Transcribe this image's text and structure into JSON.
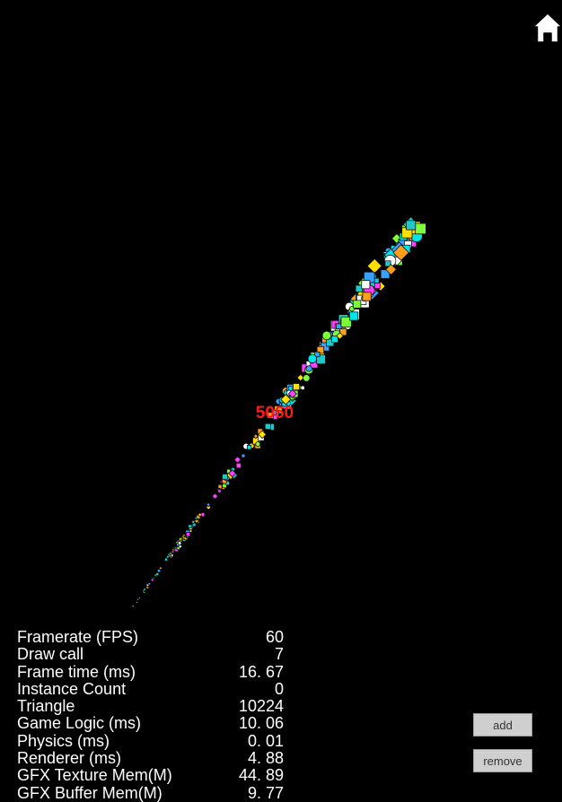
{
  "scene": {
    "sprite_count_label": "5060",
    "sprite_colors": [
      "#00e5e5",
      "#ffe000",
      "#ff40ff",
      "#ffffff",
      "#ff9f1a",
      "#3aa0ff",
      "#7dff3a",
      "#1fc9c9"
    ]
  },
  "toolbar": {
    "home_icon": "home-icon"
  },
  "stats": {
    "rows": [
      {
        "label": "Framerate (FPS)",
        "value": "60"
      },
      {
        "label": "Draw call",
        "value": "7"
      },
      {
        "label": "Frame time (ms)",
        "value": "16. 67"
      },
      {
        "label": "Instance Count",
        "value": "0"
      },
      {
        "label": "Triangle",
        "value": "10224"
      },
      {
        "label": "Game Logic (ms)",
        "value": "10. 06"
      },
      {
        "label": "Physics (ms)",
        "value": "0. 01"
      },
      {
        "label": "Renderer (ms)",
        "value": "4. 88"
      },
      {
        "label": "GFX Texture Mem(M)",
        "value": "44. 89"
      },
      {
        "label": "GFX Buffer Mem(M)",
        "value": "9. 77"
      }
    ]
  },
  "controls": {
    "add_label": "add",
    "remove_label": "remove"
  }
}
